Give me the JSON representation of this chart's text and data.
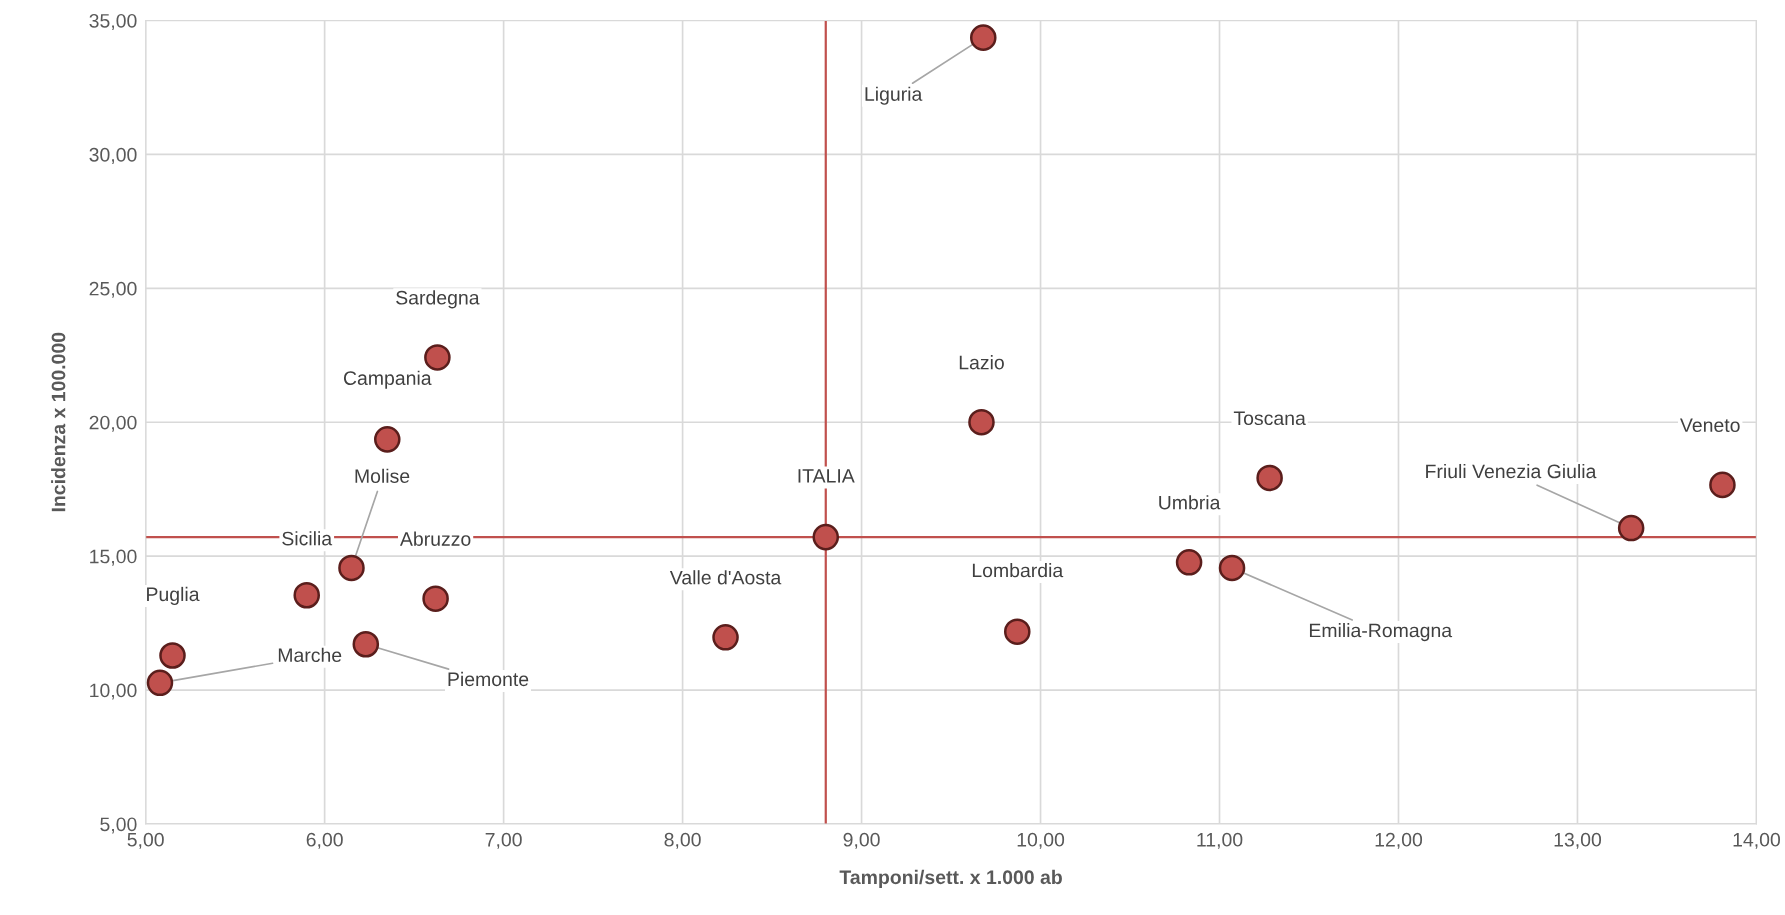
{
  "chart_data": {
    "type": "scatter",
    "xlabel": "Tamponi/sett. x 1.000 ab",
    "ylabel": "Incidenza x 100.000",
    "xlim": [
      5,
      14
    ],
    "xticks": [
      {
        "value": 5,
        "label": "5,00"
      },
      {
        "value": 6,
        "label": "6,00"
      },
      {
        "value": 7,
        "label": "7,00"
      },
      {
        "value": 8,
        "label": "8,00"
      },
      {
        "value": 9,
        "label": "9,00"
      },
      {
        "value": 10,
        "label": "10,00"
      },
      {
        "value": 11,
        "label": "11,00"
      },
      {
        "value": 12,
        "label": "12,00"
      },
      {
        "value": 13,
        "label": "13,00"
      },
      {
        "value": 14,
        "label": "14,00"
      }
    ],
    "ylim": [
      5,
      35
    ],
    "yticks": [
      {
        "value": 5,
        "label": "5,00"
      },
      {
        "value": 10,
        "label": "10,00"
      },
      {
        "value": 15,
        "label": "15,00"
      },
      {
        "value": 20,
        "label": "20,00"
      },
      {
        "value": 25,
        "label": "25,00"
      },
      {
        "value": 30,
        "label": "30,00"
      },
      {
        "value": 35,
        "label": "35,00"
      }
    ],
    "grid": true,
    "marker": "circle",
    "series": [
      {
        "color": "#c0504d",
        "x": [
          9.68,
          6.63,
          6.35,
          9.67,
          11.28,
          13.81,
          13.3,
          8.8,
          10.83,
          11.07,
          6.15,
          5.9,
          6.62,
          8.24,
          9.87,
          6.23,
          5.15,
          5.08
        ],
        "values": [
          34.36,
          22.42,
          19.36,
          20.0,
          17.92,
          17.66,
          16.05,
          15.71,
          14.77,
          14.56,
          14.56,
          13.54,
          13.41,
          11.97,
          12.18,
          11.71,
          11.29,
          10.27
        ]
      }
    ],
    "ref_lines": [
      {
        "axis": "x",
        "value": 8.8,
        "color": "#c0504d"
      },
      {
        "axis": "y",
        "value": 15.71,
        "color": "#c0504d"
      }
    ],
    "annotations": [
      {
        "text": "Liguria",
        "x": 9.68,
        "y": 34.36
      },
      {
        "text": "Sardegna",
        "x": 6.63,
        "y": 22.42
      },
      {
        "text": "Campania",
        "x": 6.35,
        "y": 19.36
      },
      {
        "text": "Lazio",
        "x": 9.67,
        "y": 20.0
      },
      {
        "text": "Toscana",
        "x": 11.28,
        "y": 17.92
      },
      {
        "text": "Veneto",
        "x": 13.81,
        "y": 17.66
      },
      {
        "text": "Friuli Venezia Giulia",
        "x": 13.3,
        "y": 16.05
      },
      {
        "text": "ITALIA",
        "x": 8.8,
        "y": 15.71
      },
      {
        "text": "Umbria",
        "x": 10.83,
        "y": 14.77
      },
      {
        "text": "Emilia-Romagna",
        "x": 11.07,
        "y": 14.56
      },
      {
        "text": "Molise",
        "x": 6.15,
        "y": 14.56
      },
      {
        "text": "Sicilia",
        "x": 5.9,
        "y": 13.54
      },
      {
        "text": "Abruzzo",
        "x": 6.62,
        "y": 13.41
      },
      {
        "text": "Valle d'Aosta",
        "x": 8.24,
        "y": 11.97
      },
      {
        "text": "Lombardia",
        "x": 9.87,
        "y": 12.18
      },
      {
        "text": "Piemonte",
        "x": 6.23,
        "y": 11.71
      },
      {
        "text": "Puglia",
        "x": 5.15,
        "y": 11.29
      },
      {
        "text": "Marche",
        "x": 5.08,
        "y": 10.27
      }
    ]
  }
}
